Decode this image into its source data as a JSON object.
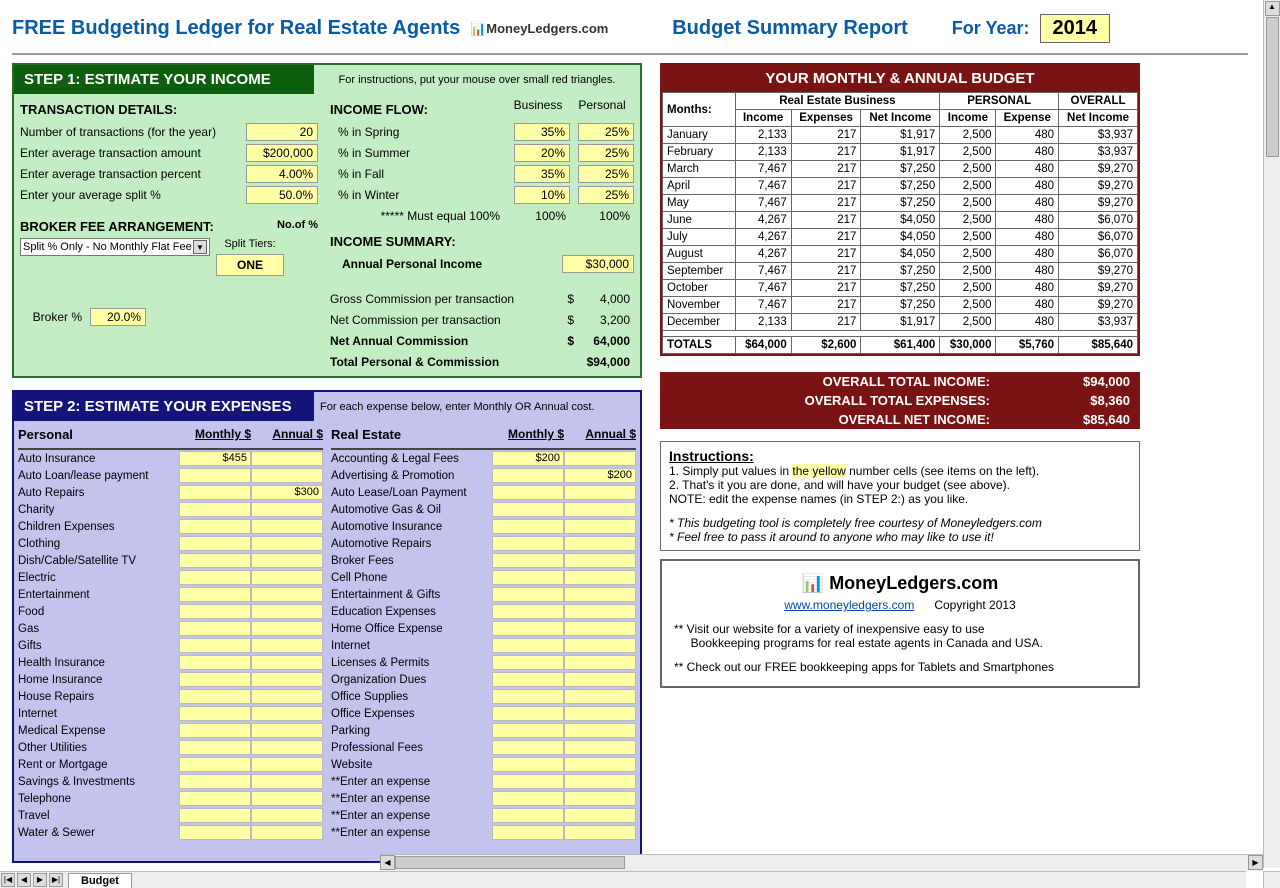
{
  "header": {
    "title": "FREE Budgeting Ledger for Real Estate Agents",
    "logo_text": "MoneyLedgers.com",
    "report": "Budget Summary Report",
    "year_label": "For Year:",
    "year": "2014"
  },
  "step1": {
    "title": "STEP 1:  ESTIMATE YOUR INCOME",
    "hint": "For instructions, put your mouse over small red triangles.",
    "tx": {
      "header": "TRANSACTION DETAILS:",
      "rows": [
        {
          "k": "Number of transactions (for the year)",
          "v": "20"
        },
        {
          "k": "Enter average transaction amount",
          "v": "$200,000"
        },
        {
          "k": "Enter average transaction percent",
          "v": "4.00%"
        },
        {
          "k": "Enter your average split %",
          "v": "50.0%"
        }
      ]
    },
    "flow": {
      "header": "INCOME FLOW:",
      "col_b": "Business",
      "col_p": "Personal",
      "rows": [
        {
          "k": "%  in Spring",
          "b": "35%",
          "p": "25%"
        },
        {
          "k": "%  in Summer",
          "b": "20%",
          "p": "25%"
        },
        {
          "k": "%  in Fall",
          "b": "35%",
          "p": "25%"
        },
        {
          "k": "%  in Winter",
          "b": "10%",
          "p": "25%"
        }
      ],
      "must": "*****  Must equal 100%",
      "must_b": "100%",
      "must_p": "100%"
    },
    "broker": {
      "header": "BROKER FEE ARRANGEMENT:",
      "select": "Split % Only -  No Monthly Flat Fee",
      "nopct": "No.of %",
      "tiers": "Split Tiers:",
      "one": "ONE",
      "pct_lbl": "Broker %",
      "pct": "20.0%"
    },
    "summary": {
      "header": "INCOME SUMMARY:",
      "api_lbl": "Annual Personal Income",
      "api": "$30,000",
      "rows": [
        {
          "k": "Gross Commission per transaction",
          "d": "$",
          "v": "4,000"
        },
        {
          "k": "Net Commission per transaction",
          "d": "$",
          "v": "3,200"
        },
        {
          "k": "Net Annual Commission",
          "d": "$",
          "v": "64,000"
        },
        {
          "k": "Total Personal & Commission",
          "d": "",
          "v": "$94,000"
        }
      ]
    }
  },
  "step2": {
    "title": "STEP 2: ESTIMATE YOUR EXPENSES",
    "hint": "For each expense below, enter Monthly OR Annual cost.",
    "col_monthly": "Monthly $",
    "col_annual": "Annual $",
    "personal_hdr": "Personal",
    "realestate_hdr": "Real Estate",
    "personal": [
      {
        "n": "Auto Insurance",
        "m": "$455",
        "a": ""
      },
      {
        "n": "Auto Loan/lease payment",
        "m": "",
        "a": ""
      },
      {
        "n": "Auto Repairs",
        "m": "",
        "a": "$300"
      },
      {
        "n": "Charity",
        "m": "",
        "a": ""
      },
      {
        "n": "Children Expenses",
        "m": "",
        "a": ""
      },
      {
        "n": "Clothing",
        "m": "",
        "a": ""
      },
      {
        "n": "Dish/Cable/Satellite TV",
        "m": "",
        "a": ""
      },
      {
        "n": "Electric",
        "m": "",
        "a": ""
      },
      {
        "n": "Entertainment",
        "m": "",
        "a": ""
      },
      {
        "n": "Food",
        "m": "",
        "a": ""
      },
      {
        "n": "Gas",
        "m": "",
        "a": ""
      },
      {
        "n": "Gifts",
        "m": "",
        "a": ""
      },
      {
        "n": "Health Insurance",
        "m": "",
        "a": ""
      },
      {
        "n": "Home Insurance",
        "m": "",
        "a": ""
      },
      {
        "n": "House Repairs",
        "m": "",
        "a": ""
      },
      {
        "n": "Internet",
        "m": "",
        "a": ""
      },
      {
        "n": "Medical Expense",
        "m": "",
        "a": ""
      },
      {
        "n": "Other Utilities",
        "m": "",
        "a": ""
      },
      {
        "n": "Rent or Mortgage",
        "m": "",
        "a": ""
      },
      {
        "n": "Savings & Investments",
        "m": "",
        "a": ""
      },
      {
        "n": "Telephone",
        "m": "",
        "a": ""
      },
      {
        "n": "Travel",
        "m": "",
        "a": ""
      },
      {
        "n": "Water & Sewer",
        "m": "",
        "a": ""
      }
    ],
    "realestate": [
      {
        "n": "Accounting & Legal Fees",
        "m": "$200",
        "a": ""
      },
      {
        "n": "Advertising & Promotion",
        "m": "",
        "a": "$200"
      },
      {
        "n": "Auto Lease/Loan Payment",
        "m": "",
        "a": ""
      },
      {
        "n": "Automotive Gas & Oil",
        "m": "",
        "a": ""
      },
      {
        "n": "Automotive Insurance",
        "m": "",
        "a": ""
      },
      {
        "n": "Automotive Repairs",
        "m": "",
        "a": ""
      },
      {
        "n": "Broker Fees",
        "m": "",
        "a": ""
      },
      {
        "n": "Cell Phone",
        "m": "",
        "a": ""
      },
      {
        "n": "Entertainment & Gifts",
        "m": "",
        "a": ""
      },
      {
        "n": "Education Expenses",
        "m": "",
        "a": ""
      },
      {
        "n": "Home Office Expense",
        "m": "",
        "a": ""
      },
      {
        "n": "Internet",
        "m": "",
        "a": ""
      },
      {
        "n": "Licenses & Permits",
        "m": "",
        "a": ""
      },
      {
        "n": "Organization Dues",
        "m": "",
        "a": ""
      },
      {
        "n": "Office Supplies",
        "m": "",
        "a": ""
      },
      {
        "n": "Office Expenses",
        "m": "",
        "a": ""
      },
      {
        "n": "Parking",
        "m": "",
        "a": ""
      },
      {
        "n": "Professional Fees",
        "m": "",
        "a": ""
      },
      {
        "n": "Website",
        "m": "",
        "a": ""
      },
      {
        "n": "**Enter an expense",
        "m": "",
        "a": ""
      },
      {
        "n": "**Enter an expense",
        "m": "",
        "a": ""
      },
      {
        "n": "**Enter an expense",
        "m": "",
        "a": ""
      },
      {
        "n": "**Enter an expense",
        "m": "",
        "a": ""
      }
    ]
  },
  "budget": {
    "title": "YOUR MONTHLY & ANNUAL BUDGET",
    "grp_biz": "Real Estate Business",
    "grp_per": "PERSONAL",
    "grp_ov": "OVERALL",
    "h_m": "Months:",
    "h_i": "Income",
    "h_e": "Expenses",
    "h_ni": "Net Income",
    "h_e2": "Expense",
    "rows": [
      {
        "m": "January",
        "bi": "2,133",
        "be": "217",
        "bni": "$1,917",
        "pi": "2,500",
        "pe": "480",
        "oni": "$3,937"
      },
      {
        "m": "February",
        "bi": "2,133",
        "be": "217",
        "bni": "$1,917",
        "pi": "2,500",
        "pe": "480",
        "oni": "$3,937"
      },
      {
        "m": "March",
        "bi": "7,467",
        "be": "217",
        "bni": "$7,250",
        "pi": "2,500",
        "pe": "480",
        "oni": "$9,270"
      },
      {
        "m": "April",
        "bi": "7,467",
        "be": "217",
        "bni": "$7,250",
        "pi": "2,500",
        "pe": "480",
        "oni": "$9,270"
      },
      {
        "m": "May",
        "bi": "7,467",
        "be": "217",
        "bni": "$7,250",
        "pi": "2,500",
        "pe": "480",
        "oni": "$9,270"
      },
      {
        "m": "June",
        "bi": "4,267",
        "be": "217",
        "bni": "$4,050",
        "pi": "2,500",
        "pe": "480",
        "oni": "$6,070"
      },
      {
        "m": "July",
        "bi": "4,267",
        "be": "217",
        "bni": "$4,050",
        "pi": "2,500",
        "pe": "480",
        "oni": "$6,070"
      },
      {
        "m": "August",
        "bi": "4,267",
        "be": "217",
        "bni": "$4,050",
        "pi": "2,500",
        "pe": "480",
        "oni": "$6,070"
      },
      {
        "m": "September",
        "bi": "7,467",
        "be": "217",
        "bni": "$7,250",
        "pi": "2,500",
        "pe": "480",
        "oni": "$9,270"
      },
      {
        "m": "October",
        "bi": "7,467",
        "be": "217",
        "bni": "$7,250",
        "pi": "2,500",
        "pe": "480",
        "oni": "$9,270"
      },
      {
        "m": "November",
        "bi": "7,467",
        "be": "217",
        "bni": "$7,250",
        "pi": "2,500",
        "pe": "480",
        "oni": "$9,270"
      },
      {
        "m": "December",
        "bi": "2,133",
        "be": "217",
        "bni": "$1,917",
        "pi": "2,500",
        "pe": "480",
        "oni": "$3,937"
      }
    ],
    "totals": {
      "m": "TOTALS",
      "bi": "$64,000",
      "be": "$2,600",
      "bni": "$61,400",
      "pi": "$30,000",
      "pe": "$5,760",
      "oni": "$85,640"
    }
  },
  "overall": {
    "inc_k": "OVERALL TOTAL INCOME:",
    "inc_v": "$94,000",
    "exp_k": "OVERALL TOTAL EXPENSES:",
    "exp_v": "$8,360",
    "net_k": "OVERALL NET INCOME:",
    "net_v": "$85,640"
  },
  "instr": {
    "h": "Instructions:",
    "l1a": "1. Simply put values in ",
    "l1y": "the yellow",
    "l1b": " number cells (see items on the left).",
    "l2": "2. That's it you are done, and will have your budget (see above).",
    "l3": "NOTE: edit the expense names (in STEP 2:) as you like.",
    "i1": "* This budgeting tool is completely free courtesy of Moneyledgers.com",
    "i2": "* Feel free to pass it around to anyone who may like to use it!"
  },
  "footer": {
    "logo": "MoneyLedgers.com",
    "url": "www.moneyledgers.com",
    "copy": "Copyright 2013",
    "l1": "** Visit our website for a variety of inexpensive easy to use",
    "l1b": "     Bookkeeping programs for real estate agents in Canada and USA.",
    "l2": "** Check out our FREE bookkeeping apps for Tablets and Smartphones"
  },
  "tabs": {
    "name": "Budget"
  }
}
